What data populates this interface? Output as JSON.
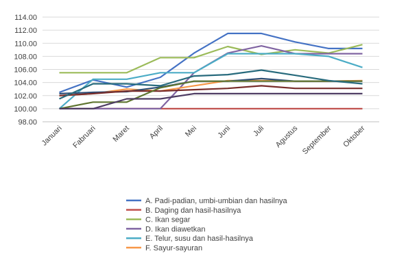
{
  "chart_data": {
    "type": "line",
    "categories": [
      "Januari",
      "Fabruari",
      "Maret",
      "April",
      "Mei",
      "Juni",
      "Juli",
      "Agustus",
      "September",
      "Oktober"
    ],
    "ylim": [
      98,
      114
    ],
    "yticks": [
      "98.00",
      "100.00",
      "102.00",
      "104.00",
      "106.00",
      "108.00",
      "110.00",
      "112.00",
      "114.00"
    ],
    "grid": true,
    "legend_position": "bottom",
    "series": [
      {
        "name": "A. Padi-padian, umbi-umbian dan hasilnya",
        "color": "#4472c4",
        "values": [
          102.5,
          104.4,
          103.3,
          104.8,
          108.5,
          111.5,
          111.5,
          110.2,
          109.2,
          109.2
        ]
      },
      {
        "name": "B. Daging dan hasil-hasilnya",
        "color": "#c0504d",
        "values": [
          100.0,
          100.0,
          100.0,
          100.0,
          100.0,
          100.0,
          100.0,
          100.0,
          100.0,
          100.0
        ]
      },
      {
        "name": "C. Ikan segar",
        "color": "#9bbb59",
        "values": [
          105.5,
          105.5,
          105.5,
          107.8,
          107.8,
          109.5,
          108.3,
          109.0,
          108.5,
          109.8
        ]
      },
      {
        "name": "D. Ikan diawetkan",
        "color": "#8064a2",
        "values": [
          100.0,
          100.0,
          100.0,
          100.0,
          105.5,
          108.5,
          109.6,
          108.4,
          108.4,
          108.4
        ]
      },
      {
        "name": "E. Telur, susu dan hasil-hasilnya",
        "color": "#4bacc6",
        "values": [
          100.0,
          104.5,
          104.5,
          105.5,
          105.5,
          108.4,
          108.4,
          108.4,
          108.0,
          106.3
        ]
      },
      {
        "name": "F. Sayur-sayuran",
        "color": "#f79646",
        "values": [
          102.0,
          102.3,
          103.0,
          102.7,
          103.5,
          104.3,
          104.3,
          104.2,
          104.2,
          104.3
        ]
      },
      {
        "name": "",
        "color": "#2c4d75",
        "values": [
          102.3,
          102.5,
          102.6,
          103.3,
          104.2,
          104.2,
          104.6,
          104.2,
          104.2,
          104.2
        ]
      },
      {
        "name": "",
        "color": "#772c2a",
        "values": [
          102.0,
          102.3,
          102.7,
          102.7,
          102.9,
          103.1,
          103.5,
          103.1,
          103.1,
          103.1
        ]
      },
      {
        "name": "",
        "color": "#5f7530",
        "values": [
          100.0,
          101.0,
          101.0,
          103.2,
          104.2,
          104.2,
          104.2,
          104.2,
          104.2,
          104.2
        ]
      },
      {
        "name": "",
        "color": "#4d3b62",
        "values": [
          100.0,
          100.0,
          101.5,
          101.5,
          102.3,
          102.3,
          102.3,
          102.3,
          102.3,
          102.3
        ]
      },
      {
        "name": "",
        "color": "#276a7c",
        "values": [
          101.5,
          103.8,
          103.8,
          103.5,
          105.0,
          105.2,
          105.9,
          105.1,
          104.3,
          103.8
        ]
      }
    ]
  }
}
